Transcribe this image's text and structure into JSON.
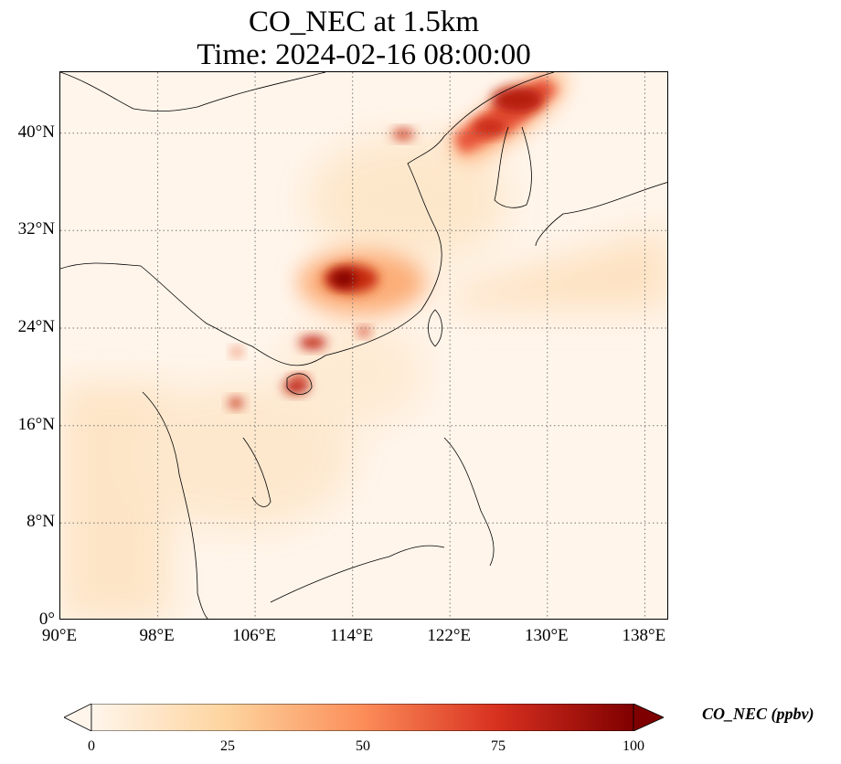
{
  "title": {
    "line1": "CO_NEC at 1.5km",
    "line2": "Time: 2024-02-16 08:00:00"
  },
  "map": {
    "x_ticks": [
      "90°E",
      "98°E",
      "106°E",
      "114°E",
      "122°E",
      "130°E",
      "138°E"
    ],
    "y_ticks": [
      "0°",
      "8°N",
      "16°N",
      "24°N",
      "32°N",
      "40°N"
    ],
    "extent_lon": [
      90,
      140
    ],
    "extent_lat": [
      0,
      45
    ],
    "gridlines": "dotted",
    "colormap": "OrRd",
    "plumes": [
      {
        "region": "NE China / Korea border",
        "level": "high"
      },
      {
        "region": "Central China (Hunan/Jiangxi)",
        "level": "high"
      },
      {
        "region": "Guangdong / Hainan",
        "level": "moderate-high"
      },
      {
        "region": "Northern Laos",
        "level": "moderate-high"
      }
    ]
  },
  "colorbar": {
    "label": "CO_NEC (ppbv)",
    "ticks": [
      "0",
      "25",
      "50",
      "75",
      "100"
    ],
    "range": [
      0,
      100
    ],
    "extend": "both",
    "colors": [
      "#fff5eb",
      "#fdd49e",
      "#fc8d59",
      "#d7301f",
      "#7f0000"
    ]
  }
}
